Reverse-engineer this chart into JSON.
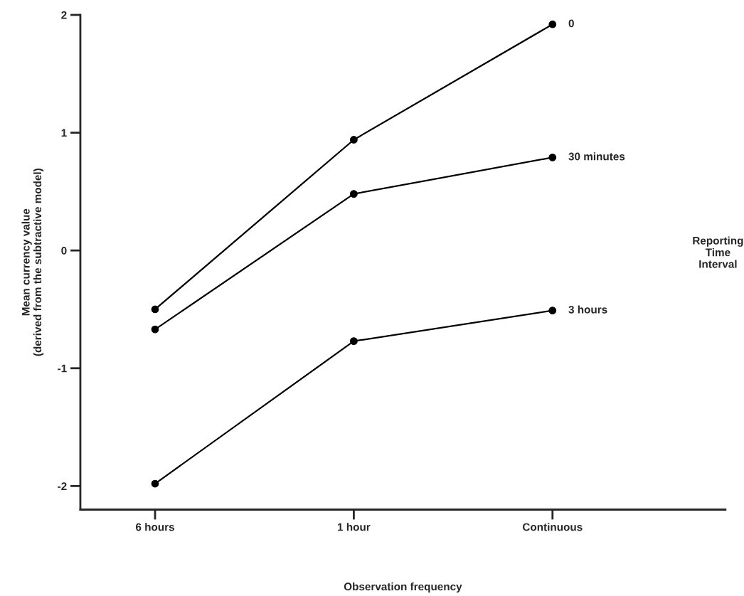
{
  "chart_data": {
    "type": "line",
    "categories": [
      "6 hours",
      "1 hour",
      "Continuous"
    ],
    "xlabel": "Observation frequency",
    "ylabel": "Mean currency value\n(derived from the subtractive model)",
    "legend_title": "Reporting\nTime\nInterval",
    "ylim": [
      -2.2,
      2
    ],
    "yticks": [
      -2,
      -1,
      0,
      1,
      2
    ],
    "grid": false,
    "marker": "circle",
    "line_style": "solid",
    "series": [
      {
        "name": "0",
        "color": "#000000",
        "values": [
          -0.5,
          0.94,
          1.92
        ]
      },
      {
        "name": "30 minutes",
        "color": "#000000",
        "values": [
          -0.67,
          0.48,
          0.79
        ]
      },
      {
        "name": "3 hours",
        "color": "#000000",
        "values": [
          -1.98,
          -0.77,
          -0.51
        ]
      }
    ]
  }
}
